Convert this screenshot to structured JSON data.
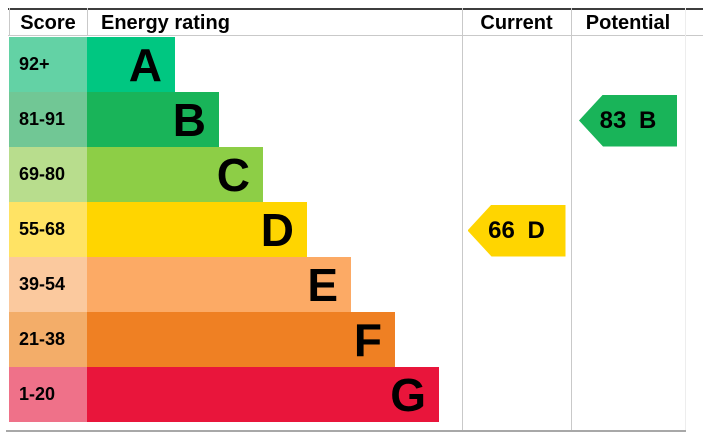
{
  "header": {
    "score": "Score",
    "energy_rating": "Energy rating",
    "current": "Current",
    "potential": "Potential"
  },
  "chart_data": {
    "type": "bar",
    "title": "EPC energy efficiency rating chart",
    "columns": [
      "Score",
      "Energy rating",
      "Current",
      "Potential"
    ],
    "bands": [
      {
        "letter": "A",
        "score_range": "92+",
        "color": "#00c781",
        "score_bg": "#63d2a5"
      },
      {
        "letter": "B",
        "score_range": "81-91",
        "color": "#19b459",
        "score_bg": "#71c795"
      },
      {
        "letter": "C",
        "score_range": "69-80",
        "color": "#8dce46",
        "score_bg": "#b8dd8d"
      },
      {
        "letter": "D",
        "score_range": "55-68",
        "color": "#ffd500",
        "score_bg": "#ffe364"
      },
      {
        "letter": "E",
        "score_range": "39-54",
        "color": "#fcaa65",
        "score_bg": "#fbc99e"
      },
      {
        "letter": "F",
        "score_range": "21-38",
        "color": "#ef8023",
        "score_bg": "#f3ad69"
      },
      {
        "letter": "G",
        "score_range": "1-20",
        "color": "#e9153b",
        "score_bg": "#ef7189"
      }
    ],
    "current": {
      "value": 66,
      "band": "D",
      "label": "66 D",
      "color": "#ffd500"
    },
    "potential": {
      "value": 83,
      "band": "B",
      "label": "83 B",
      "color": "#19b459"
    }
  }
}
